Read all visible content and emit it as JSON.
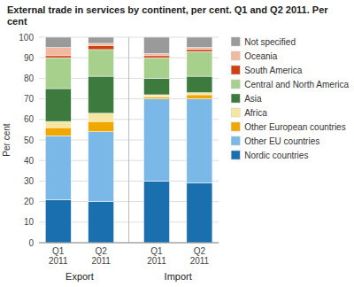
{
  "chart_data": {
    "type": "bar",
    "stacked": true,
    "title": "External trade in services by continent, per cent. Q1 and Q2 2011. Per cent",
    "ylabel": "Per cent",
    "categories": [
      "Q1\n2011",
      "Q2\n2011",
      "Q1\n2011",
      "Q2\n2011"
    ],
    "annotations": [
      "Export",
      "Import"
    ],
    "series": [
      {
        "name": "Nordic countries",
        "color": "#1a6faf",
        "values": [
          21,
          20,
          30,
          29
        ]
      },
      {
        "name": "Other EU countries",
        "color": "#7ab8e8",
        "values": [
          31,
          34,
          40,
          41
        ]
      },
      {
        "name": "Other European countries",
        "color": "#f0a800",
        "values": [
          4,
          5,
          1,
          2
        ]
      },
      {
        "name": "Africa",
        "color": "#f5e6a0",
        "values": [
          3,
          4,
          1,
          1
        ]
      },
      {
        "name": "Asia",
        "color": "#3d7a3d",
        "values": [
          16,
          18,
          8,
          8
        ]
      },
      {
        "name": "Central and North America",
        "color": "#a8d08d",
        "values": [
          15,
          13,
          10,
          12
        ]
      },
      {
        "name": "South America",
        "color": "#d04010",
        "values": [
          1,
          2,
          1,
          1
        ]
      },
      {
        "name": "Oceania",
        "color": "#f4b8a0",
        "values": [
          4,
          1,
          1,
          1
        ]
      },
      {
        "name": "Not specified",
        "color": "#9a9a9a",
        "values": [
          5,
          3,
          8,
          5
        ]
      }
    ],
    "ylim": [
      0,
      100
    ],
    "yticks": [
      0,
      10,
      20,
      30,
      40,
      50,
      60,
      70,
      80,
      90,
      100
    ],
    "grid": true,
    "legend": "right"
  }
}
